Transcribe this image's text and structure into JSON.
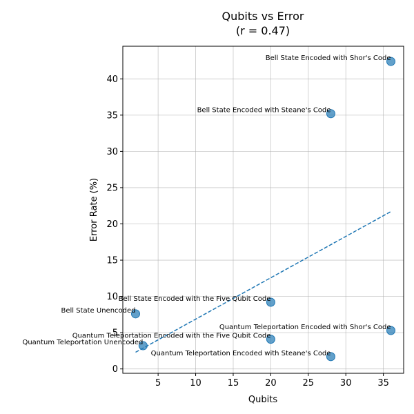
{
  "chart_data": {
    "type": "scatter",
    "title": "Qubits vs Error",
    "subtitle": "(r = 0.47)",
    "xlabel": "Qubits",
    "ylabel": "Error Rate (%)",
    "xlim": [
      0.3,
      37.7
    ],
    "ylim": [
      -0.6,
      44.5
    ],
    "xticks": [
      5,
      10,
      15,
      20,
      25,
      30,
      35
    ],
    "yticks": [
      0,
      5,
      10,
      15,
      20,
      25,
      30,
      35,
      40
    ],
    "grid": true,
    "marker_color": "#1f77b4",
    "trendline_color": "#1f77b4",
    "points": [
      {
        "label": "Bell State Unencoded",
        "x": 2,
        "y": 7.6
      },
      {
        "label": "Quantum Teleportation Unencoded",
        "x": 3,
        "y": 3.2
      },
      {
        "label": "Bell State Encoded with the Five Qubit Code",
        "x": 20,
        "y": 9.2
      },
      {
        "label": "Quantum Teleportation Encoded with the Five Qubit Code",
        "x": 20,
        "y": 4.1
      },
      {
        "label": "Bell State Encoded with Steane's Code",
        "x": 28,
        "y": 35.2
      },
      {
        "label": "Quantum Teleportation Encoded with Steane's Code",
        "x": 28,
        "y": 1.7
      },
      {
        "label": "Bell State Encoded with Shor's Code",
        "x": 36,
        "y": 42.4
      },
      {
        "label": "Quantum Teleportation Encoded with Shor's Code",
        "x": 36,
        "y": 5.3
      }
    ],
    "trendline": {
      "x": [
        2,
        36
      ],
      "y": [
        2.3,
        21.7
      ]
    }
  }
}
